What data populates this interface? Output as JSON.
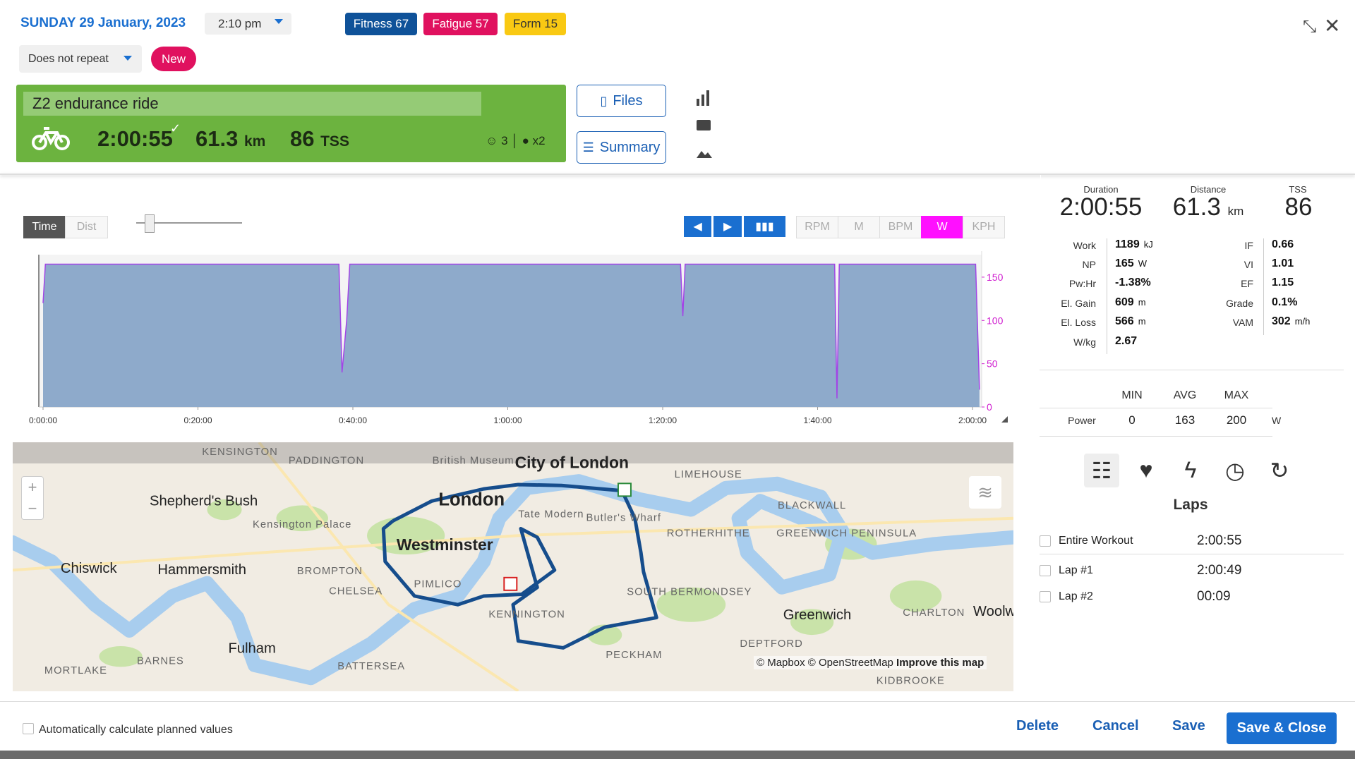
{
  "header": {
    "date": "SUNDAY 29 January, 2023",
    "time": "2:10 pm",
    "badges": [
      "Fitness 67",
      "Fatigue 57",
      "Form 15"
    ],
    "repeat": "Does not repeat",
    "new": "New"
  },
  "workout": {
    "title": "Z2 endurance ride",
    "duration": "2:00:55",
    "distance": "61.3",
    "distance_unit": "km",
    "tss": "86",
    "tss_unit": "TSS",
    "feel": "3",
    "comments": "x2"
  },
  "buttons": {
    "files": "Files",
    "summary": "Summary"
  },
  "chart_controls": {
    "toggles": [
      "Time",
      "Dist"
    ],
    "channels": [
      "RPM",
      "M",
      "BPM",
      "W",
      "KPH"
    ],
    "active_channel": 3
  },
  "chart_data": {
    "type": "area",
    "x": [
      0,
      0.3,
      38.2,
      38.6,
      39.2,
      39.6,
      82.3,
      82.6,
      82.9,
      102.2,
      102.5,
      102.8,
      120.4,
      120.9
    ],
    "values": [
      120,
      165,
      165,
      40,
      100,
      165,
      165,
      105,
      165,
      165,
      10,
      165,
      165,
      20
    ],
    "color": "#a245e6",
    "fill_color": "#8eaacb",
    "xlim": [
      0,
      121
    ],
    "ylim": [
      0,
      176
    ],
    "xticks": [
      {
        "value": 0,
        "label": "0:00:00"
      },
      {
        "value": 20,
        "label": "0:20:00"
      },
      {
        "value": 40,
        "label": "0:40:00"
      },
      {
        "value": 60,
        "label": "1:00:00"
      },
      {
        "value": 80,
        "label": "1:20:00"
      },
      {
        "value": 100,
        "label": "1:40:00"
      },
      {
        "value": 120,
        "label": "2:00:00"
      }
    ],
    "yticks": [
      0,
      50,
      100,
      150
    ],
    "tick_color": "#d020d0"
  },
  "map": {
    "labels": [
      "KENSINGTON",
      "PADDINGTON",
      "British Museum",
      "City of London",
      "LIMEHOUSE",
      "Shepherd's Bush",
      "Kensington Palace",
      "London",
      "Westminster",
      "Tate Modern",
      "Butler's Wharf",
      "ROTHERHITHE",
      "BLACKWALL",
      "GREENWICH PENINSULA",
      "Chiswick",
      "Hammersmith",
      "BROMPTON",
      "CHELSEA",
      "PIMLICO",
      "KENNINGTON",
      "SOUTH BERMONDSEY",
      "Greenwich",
      "CHARLTON",
      "Woolw",
      "Fulham",
      "BARNES",
      "BATTERSEA",
      "PECKHAM",
      "DEPTFORD",
      "MORTLAKE",
      "KIDBROOKE"
    ],
    "attribution": "© Mapbox © OpenStreetMap",
    "improve": "Improve this map"
  },
  "summary": {
    "duration_label": "Duration",
    "duration": "2:00:55",
    "distance_label": "Distance",
    "distance": "61.3",
    "distance_unit": "km",
    "tss_label": "TSS",
    "tss": "86",
    "left": [
      {
        "label": "Work",
        "value": "1189",
        "unit": "kJ"
      },
      {
        "label": "NP",
        "value": "165",
        "unit": "W"
      },
      {
        "label": "Pw:Hr",
        "value": "-1.38%"
      },
      {
        "label": "El. Gain",
        "value": "609",
        "unit": "m"
      },
      {
        "label": "El. Loss",
        "value": "566",
        "unit": "m"
      },
      {
        "label": "W/kg",
        "value": "2.67"
      }
    ],
    "right": [
      {
        "label": "IF",
        "value": "0.66"
      },
      {
        "label": "VI",
        "value": "1.01"
      },
      {
        "label": "EF",
        "value": "1.15"
      },
      {
        "label": "Grade",
        "value": "0.1%"
      },
      {
        "label": "VAM",
        "value": "302",
        "unit": "m/h"
      }
    ]
  },
  "minmax": {
    "headers": [
      "MIN",
      "AVG",
      "MAX"
    ],
    "row": {
      "label": "Power",
      "values": [
        "0",
        "163",
        "200"
      ],
      "unit": "W"
    }
  },
  "laps": {
    "title": "Laps",
    "rows": [
      {
        "name": "Entire Workout",
        "time": "2:00:55"
      },
      {
        "name": "Lap #1",
        "time": "2:00:49"
      },
      {
        "name": "Lap #2",
        "time": "00:09"
      }
    ]
  },
  "footer": {
    "auto": "Automatically calculate planned values",
    "delete": "Delete",
    "cancel": "Cancel",
    "save": "Save",
    "save_close": "Save & Close"
  }
}
